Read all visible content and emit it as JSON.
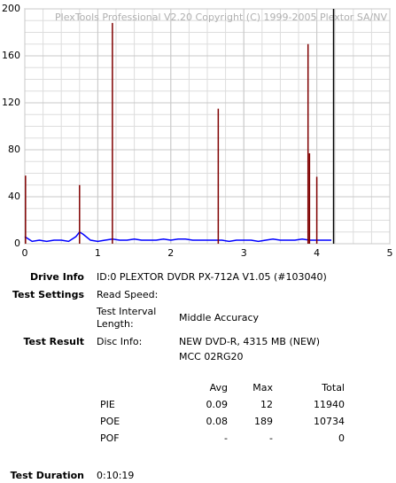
{
  "chart_data": {
    "type": "line",
    "watermark": "PlexTools Professional V2.20 Copyright (C) 1999-2005 Plextor SA/NV",
    "xlim": [
      0,
      5
    ],
    "xticks": [
      0,
      1,
      2,
      3,
      4,
      5
    ],
    "ylim": [
      0,
      200
    ],
    "yticks": [
      0,
      40,
      80,
      120,
      160,
      200
    ],
    "grid": true,
    "minor_grid_step": [
      0.25,
      10
    ],
    "series": [
      {
        "style": "line",
        "color": "#0000ff",
        "x": [
          0,
          0.1,
          0.2,
          0.3,
          0.4,
          0.5,
          0.6,
          0.7,
          0.75,
          0.8,
          0.9,
          1.0,
          1.1,
          1.2,
          1.3,
          1.4,
          1.5,
          1.6,
          1.7,
          1.8,
          1.9,
          2.0,
          2.1,
          2.2,
          2.3,
          2.4,
          2.5,
          2.6,
          2.7,
          2.8,
          2.9,
          3.0,
          3.1,
          3.2,
          3.3,
          3.4,
          3.5,
          3.6,
          3.7,
          3.8,
          3.9,
          4.0,
          4.1,
          4.2
        ],
        "values": [
          6,
          2,
          3,
          2,
          3,
          3,
          2,
          6,
          10,
          8,
          3,
          2,
          3,
          4,
          3,
          3,
          4,
          3,
          3,
          3,
          4,
          3,
          4,
          4,
          3,
          3,
          3,
          3,
          3,
          2,
          3,
          3,
          3,
          2,
          3,
          4,
          3,
          3,
          3,
          4,
          3,
          3,
          3,
          3
        ]
      },
      {
        "style": "spike",
        "color": "#800000",
        "x": [
          0.01,
          0.75,
          1.2,
          2.65,
          3.88,
          3.9,
          4.0
        ],
        "values": [
          58,
          50,
          188,
          115,
          170,
          77,
          57
        ]
      },
      {
        "style": "spike",
        "color": "#000000",
        "x": [
          4.23
        ],
        "values": [
          200
        ]
      }
    ]
  },
  "info": {
    "drive_info": {
      "label": "Drive Info",
      "value": "ID:0 PLEXTOR DVDR PX-712A V1.05 (#103040)"
    },
    "test_settings": {
      "label": "Test Settings",
      "read_speed": "Read Speed:",
      "interval_label": "Test Interval Length:",
      "interval_value": "Middle Accuracy"
    },
    "test_result": {
      "label": "Test Result",
      "disc_info_label": "Disc Info:",
      "disc_info": [
        "NEW DVD-R, 4315 MB (NEW)",
        "MCC 02RG20"
      ]
    },
    "table": {
      "columns": [
        "Avg",
        "Max",
        "Total"
      ],
      "rows": [
        [
          "PIE",
          "0.09",
          "12",
          "11940"
        ],
        [
          "POE",
          "0.08",
          "189",
          "10734"
        ],
        [
          "POF",
          "-",
          "-",
          "0"
        ]
      ]
    },
    "test_duration": {
      "label": "Test Duration",
      "value": "0:10:19"
    }
  }
}
